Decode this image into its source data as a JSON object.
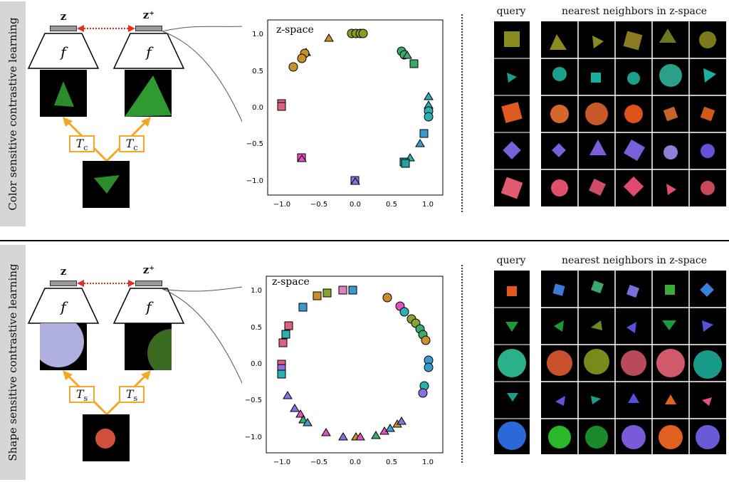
{
  "top": {
    "sidebar_label": "Color sensitive contrastive learning",
    "z_label": "z",
    "zplus_label": "z⁺",
    "f_label": "f",
    "t_label": "T",
    "t_sub": "c",
    "plot_label": "z-space",
    "query_label": "query",
    "nn_label": "nearest neighbors in z-space"
  },
  "bottom": {
    "sidebar_label": "Shape sensitive contrastive learning",
    "z_label": "z",
    "zplus_label": "z⁺",
    "f_label": "f",
    "t_label": "T",
    "t_sub": "s",
    "plot_label": "z-space",
    "query_label": "query",
    "nn_label": "nearest neighbors in z-space"
  },
  "axis_ticks_y": [
    "1.0",
    "0.5",
    "0.0",
    "−0.5",
    "−1.0"
  ],
  "axis_ticks_x": [
    "−1.0",
    "−0.5",
    "0.0",
    "0.5",
    "1.0"
  ],
  "colors": {
    "arrow_red": "#e03020",
    "orange": "#f5a623",
    "bar_gray": "#9a9a9a"
  }
}
